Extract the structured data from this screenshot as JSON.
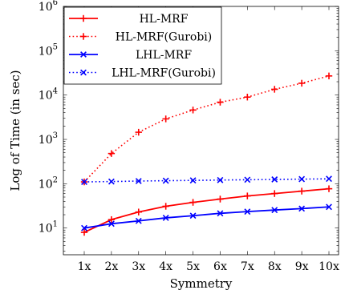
{
  "chart_data": {
    "type": "line",
    "ylog": true,
    "xlabel": "Symmetry",
    "ylabel": "Log of Time (in sec)",
    "categories": [
      "1x",
      "2x",
      "3x",
      "4x",
      "5x",
      "6x",
      "7x",
      "8x",
      "9x",
      "10x"
    ],
    "ylim": [
      2.5,
      1000000
    ],
    "yticks": [
      {
        "value": 10,
        "label": "10",
        "exp": "1"
      },
      {
        "value": 100,
        "label": "10",
        "exp": "2"
      },
      {
        "value": 1000,
        "label": "10",
        "exp": "3"
      },
      {
        "value": 10000,
        "label": "10",
        "exp": "4"
      },
      {
        "value": 100000,
        "label": "10",
        "exp": "5"
      },
      {
        "value": 1000000,
        "label": "10",
        "exp": "6"
      }
    ],
    "grid": false,
    "legend_position": "top-left",
    "series": [
      {
        "name": "HL-MRF",
        "color": "#ff0000",
        "style": "solid",
        "marker": "plus",
        "values": [
          8,
          15.5,
          23,
          31,
          38,
          45,
          53,
          60,
          68,
          77
        ]
      },
      {
        "name": "HL-MRF(Gurobi)",
        "color": "#ff0000",
        "style": "dotted",
        "marker": "plus",
        "values": [
          110,
          480,
          1450,
          2900,
          4600,
          6900,
          9000,
          13500,
          18500,
          27000
        ]
      },
      {
        "name": "LHL-MRF",
        "color": "#0000ff",
        "style": "solid",
        "marker": "cross",
        "values": [
          10,
          12.5,
          14.5,
          17,
          19,
          21.5,
          23.5,
          25.5,
          27.5,
          30
        ]
      },
      {
        "name": "LHL-MRF(Gurobi)",
        "color": "#0000ff",
        "style": "dotted",
        "marker": "cross",
        "values": [
          110,
          112,
          115,
          117,
          119,
          121,
          123,
          125,
          127,
          129
        ]
      }
    ]
  }
}
